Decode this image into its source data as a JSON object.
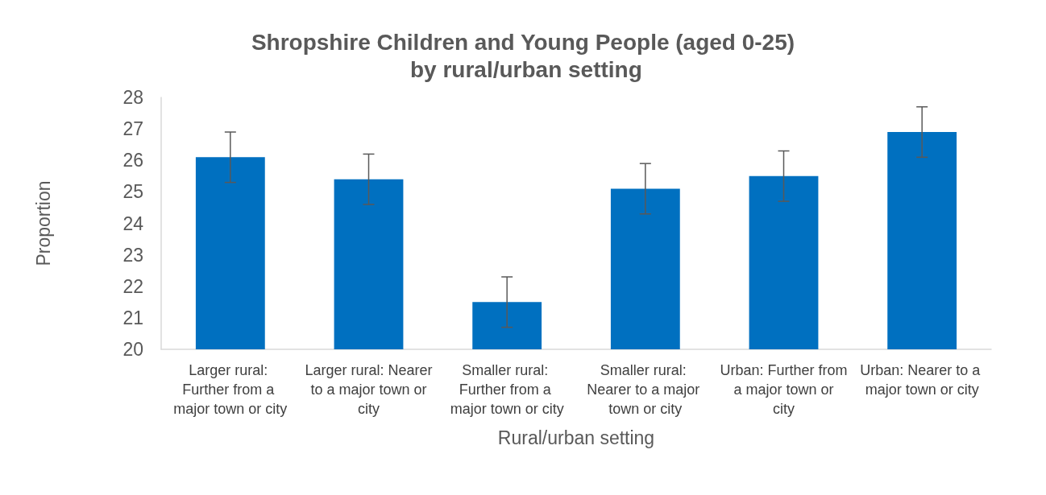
{
  "chart_data": {
    "type": "bar",
    "title": "Shropshire Children and Young People (aged 0-25) by rural/urban setting",
    "xlabel": "Rural/urban setting",
    "ylabel": "Proportion",
    "categories": [
      "Larger rural: Further from a major town or city",
      "Larger rural: Nearer to a major town or city",
      "Smaller rural: Further from a major town or city",
      "Smaller rural: Nearer to a major town or city",
      "Urban: Further from a major town or city",
      "Urban: Nearer to a major town or city"
    ],
    "values": [
      26.1,
      25.4,
      21.5,
      25.1,
      25.5,
      26.9
    ],
    "errors": [
      0.8,
      0.8,
      0.8,
      0.8,
      0.8,
      0.8
    ],
    "color": "#0070c0",
    "ylim": [
      20,
      28
    ],
    "yticks": [
      20,
      21,
      22,
      23,
      24,
      25,
      26,
      27,
      28
    ],
    "grid": false
  }
}
